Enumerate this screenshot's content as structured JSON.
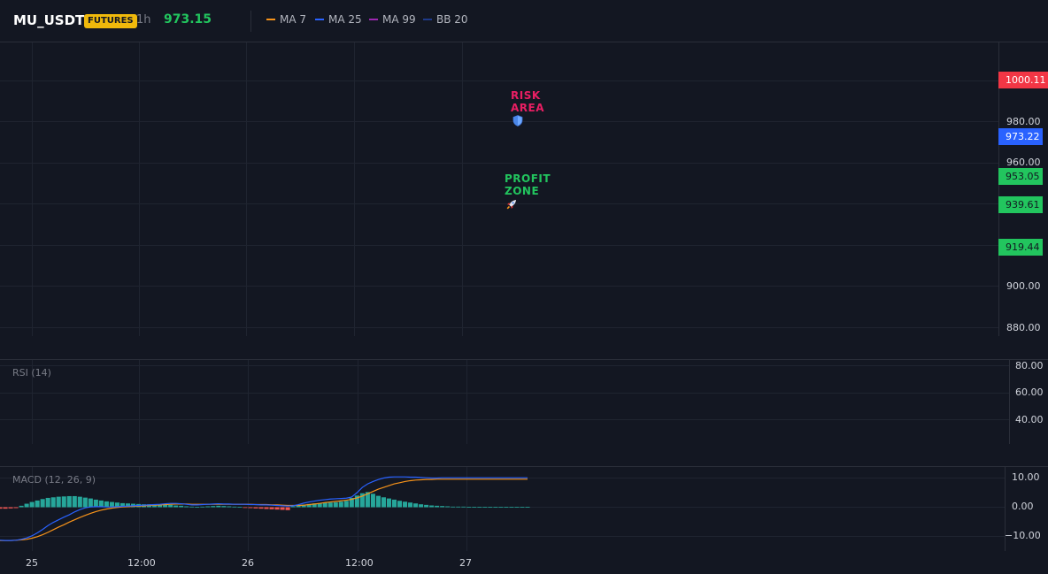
{
  "header": {
    "symbol": "MU_USDT",
    "market_badge": "FUTURES",
    "interval": "1h",
    "last_price": "973.15",
    "legend": [
      {
        "label": "MA 7",
        "color": "#f7931a"
      },
      {
        "label": "MA 25",
        "color": "#2962ff"
      },
      {
        "label": "MA 99",
        "color": "#9c27b0"
      },
      {
        "label": "BB 20",
        "color": "#1e3a8a"
      }
    ]
  },
  "price_pane": {
    "axis_labels": [
      "980.00",
      "960.00",
      "900.00",
      "880.00"
    ],
    "price_tags": [
      {
        "value": "1000.11",
        "color": "#f23645",
        "text_color": "#ffffff"
      },
      {
        "value": "973.22",
        "color": "#2962ff",
        "text_color": "#ffffff"
      },
      {
        "value": "953.05",
        "color": "#22c55e",
        "text_color": "#131722"
      },
      {
        "value": "939.61",
        "color": "#22c55e",
        "text_color": "#131722"
      },
      {
        "value": "919.44",
        "color": "#22c55e",
        "text_color": "#131722"
      }
    ],
    "annotations": {
      "risk": {
        "line1": "RISK",
        "line2": "AREA",
        "icon": "shield-icon",
        "color": "#e91e63"
      },
      "profit": {
        "line1": "PROFIT",
        "line2": "ZONE",
        "icon": "rocket-icon",
        "color": "#22c55e"
      }
    }
  },
  "rsi_pane": {
    "title": "RSI (14)",
    "axis_labels": [
      "80.00",
      "60.00",
      "40.00"
    ]
  },
  "macd_pane": {
    "title": "MACD (12, 26, 9)",
    "axis_labels": [
      "10.00",
      "0.00",
      "−10.00"
    ]
  },
  "time_axis": [
    "25",
    "12:00",
    "26",
    "12:00",
    "27"
  ],
  "chart_data": [
    {
      "type": "line",
      "title": "MACD (12, 26, 9)",
      "ylim": [
        -12,
        12
      ],
      "x": [
        0,
        1,
        2,
        3,
        4,
        5,
        6,
        7,
        8,
        9,
        10,
        11,
        12,
        13,
        14,
        15,
        16,
        17,
        18,
        19,
        20,
        21,
        22,
        23,
        24,
        25,
        26,
        27,
        28,
        29,
        30,
        31,
        32,
        33,
        34,
        35,
        36,
        37,
        38,
        39,
        40,
        41,
        42,
        43,
        44,
        45,
        46,
        47,
        48,
        49,
        50,
        51,
        52,
        53,
        54,
        55,
        56,
        57,
        58,
        59,
        60,
        61,
        62,
        63,
        64,
        65,
        66,
        67,
        68,
        69,
        70,
        71,
        72,
        73,
        74,
        75,
        76,
        77,
        78,
        79,
        80,
        81,
        82,
        83,
        84,
        85,
        86,
        87,
        88,
        89,
        90,
        91,
        92,
        93,
        94,
        95,
        96,
        97,
        98,
        99
      ],
      "series": [
        {
          "name": "MACD",
          "color": "#2962ff",
          "values": [
            -11.3,
            -11.4,
            -11.4,
            -11.3,
            -11.0,
            -10.5,
            -9.8,
            -8.8,
            -7.6,
            -6.3,
            -5.2,
            -4.3,
            -3.4,
            -2.6,
            -1.6,
            -0.8,
            -0.2,
            0.1,
            0.2,
            0.2,
            0.1,
            0.1,
            0.2,
            0.3,
            0.4,
            0.5,
            0.6,
            0.7,
            0.8,
            0.9,
            1.0,
            1.2,
            1.3,
            1.3,
            1.2,
            1.0,
            0.8,
            0.8,
            0.9,
            1.0,
            1.1,
            1.2,
            1.1,
            1.1,
            1.0,
            1.0,
            1.0,
            0.9,
            0.9,
            0.8,
            0.8,
            0.7,
            0.6,
            0.5,
            0.4,
            0.5,
            0.9,
            1.4,
            1.8,
            2.1,
            2.4,
            2.6,
            2.8,
            2.9,
            3.0,
            3.1,
            3.5,
            5.0,
            6.8,
            8.0,
            8.8,
            9.5,
            10.0,
            10.3,
            10.4,
            10.4,
            10.4,
            10.3,
            10.3,
            10.2,
            10.1,
            10.0,
            10.0,
            10.1,
            10.1,
            10.1,
            10.1,
            10.1,
            10.1,
            10.1,
            10.1,
            10.1,
            10.1,
            10.1,
            10.1,
            10.1,
            10.1,
            10.1,
            10.1,
            10.1
          ]
        },
        {
          "name": "Signal",
          "color": "#f7931a",
          "values": [
            -11.4,
            -11.4,
            -11.4,
            -11.3,
            -11.2,
            -11.0,
            -10.6,
            -10.1,
            -9.4,
            -8.6,
            -7.7,
            -6.8,
            -6.0,
            -5.1,
            -4.3,
            -3.5,
            -2.8,
            -2.1,
            -1.5,
            -1.0,
            -0.6,
            -0.3,
            -0.1,
            0.1,
            0.2,
            0.3,
            0.4,
            0.5,
            0.6,
            0.7,
            0.8,
            0.9,
            1.0,
            1.1,
            1.1,
            1.1,
            1.0,
            1.0,
            1.0,
            1.0,
            1.0,
            1.0,
            1.0,
            1.0,
            1.0,
            1.0,
            1.0,
            1.0,
            0.9,
            0.9,
            0.9,
            0.8,
            0.8,
            0.7,
            0.6,
            0.6,
            0.6,
            0.7,
            0.9,
            1.1,
            1.3,
            1.6,
            1.8,
            2.0,
            2.2,
            2.4,
            2.7,
            3.2,
            3.8,
            4.6,
            5.4,
            6.2,
            6.8,
            7.4,
            8.0,
            8.4,
            8.8,
            9.1,
            9.3,
            9.4,
            9.5,
            9.5,
            9.6,
            9.6,
            9.6,
            9.6,
            9.6,
            9.6,
            9.6,
            9.6,
            9.6,
            9.6,
            9.6,
            9.6,
            9.6,
            9.6,
            9.6,
            9.6,
            9.6,
            9.6
          ]
        }
      ],
      "histogram": {
        "name": "Histogram",
        "pos_color": "#26a69a",
        "neg_color": "#ef5350",
        "values": [
          -0.5,
          -0.5,
          -0.4,
          -0.3,
          0.5,
          1.2,
          1.8,
          2.3,
          2.8,
          3.2,
          3.4,
          3.6,
          3.7,
          3.8,
          3.8,
          3.6,
          3.3,
          3.0,
          2.6,
          2.3,
          2.0,
          1.8,
          1.6,
          1.4,
          1.3,
          1.2,
          1.1,
          1.0,
          1.0,
          0.9,
          0.9,
          0.8,
          0.8,
          0.6,
          0.5,
          0.3,
          0.2,
          0.1,
          0.2,
          0.3,
          0.4,
          0.5,
          0.4,
          0.3,
          0.2,
          0.1,
          -0.1,
          -0.3,
          -0.4,
          -0.5,
          -0.6,
          -0.7,
          -0.8,
          -0.9,
          -1.0,
          0.3,
          0.6,
          0.9,
          1.1,
          1.3,
          1.4,
          1.5,
          1.6,
          1.7,
          1.9,
          2.2,
          3.2,
          4.0,
          4.8,
          5.2,
          4.6,
          3.9,
          3.4,
          3.0,
          2.6,
          2.2,
          1.9,
          1.6,
          1.3,
          1.0,
          0.8,
          0.6,
          0.5,
          0.4,
          0.3,
          0.2,
          0.2,
          0.2,
          0.1,
          0.1,
          0.1,
          0.1,
          0.1,
          0.1,
          0.1,
          0.1,
          0.1,
          0.1,
          0.1,
          0.1
        ]
      }
    }
  ]
}
